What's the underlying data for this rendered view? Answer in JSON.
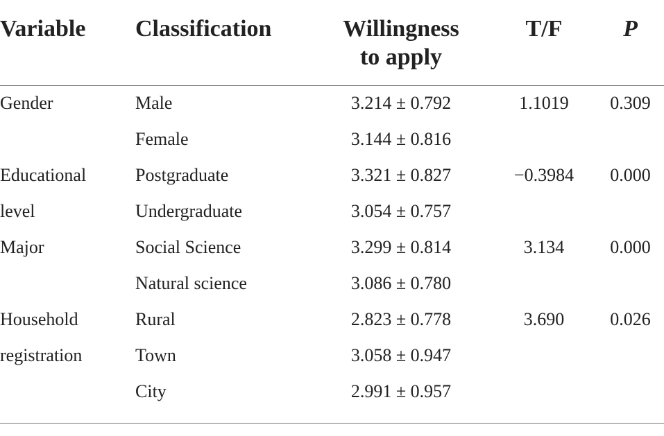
{
  "table": {
    "headers": {
      "variable": "Variable",
      "classification": "Classification",
      "willingness_line1": "Willingness",
      "willingness_line2": "to apply",
      "tf": "T/F",
      "p": "P"
    },
    "rows": [
      {
        "variable": "Gender",
        "classification": "Male",
        "willingness": "3.214 ± 0.792",
        "tf": "1.1019",
        "p": "0.309"
      },
      {
        "variable": "",
        "classification": "Female",
        "willingness": "3.144 ± 0.816",
        "tf": "",
        "p": ""
      },
      {
        "variable": "Educational",
        "classification": "Postgraduate",
        "willingness": "3.321 ± 0.827",
        "tf": "−0.3984",
        "p": "0.000"
      },
      {
        "variable": "level",
        "classification": "Undergraduate",
        "willingness": "3.054 ± 0.757",
        "tf": "",
        "p": ""
      },
      {
        "variable": "Major",
        "classification": "Social Science",
        "willingness": "3.299 ± 0.814",
        "tf": "3.134",
        "p": "0.000"
      },
      {
        "variable": "",
        "classification": "Natural science",
        "willingness": "3.086 ± 0.780",
        "tf": "",
        "p": ""
      },
      {
        "variable": "Household",
        "classification": "Rural",
        "willingness": "2.823 ± 0.778",
        "tf": "3.690",
        "p": "0.026"
      },
      {
        "variable": "registration",
        "classification": "Town",
        "willingness": "3.058 ± 0.947",
        "tf": "",
        "p": ""
      },
      {
        "variable": "",
        "classification": "City",
        "willingness": "2.991 ± 0.957",
        "tf": "",
        "p": ""
      }
    ]
  }
}
